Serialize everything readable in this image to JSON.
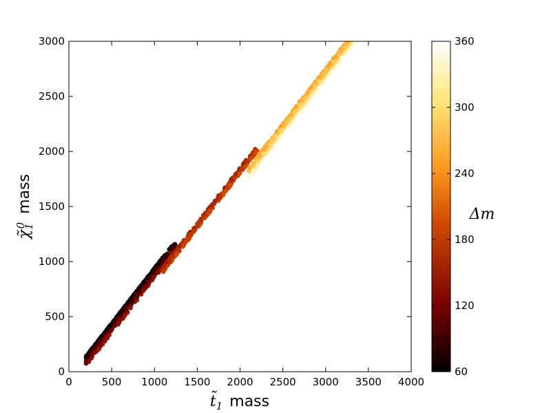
{
  "chart_data": {
    "type": "scatter",
    "xlabel_symbol": "t̃",
    "xlabel_sub": "1",
    "xlabel_word": "mass",
    "ylabel_symbol": "χ̃",
    "ylabel_sub": "1",
    "ylabel_sup": "0",
    "ylabel_word": "mass",
    "xlim": [
      0,
      4000
    ],
    "ylim": [
      0,
      3000
    ],
    "xticks": [
      0,
      500,
      1000,
      1500,
      2000,
      2500,
      3000,
      3500,
      4000
    ],
    "yticks": [
      0,
      500,
      1000,
      1500,
      2000,
      2500,
      3000
    ],
    "grid": false,
    "colorbar": {
      "label": "Δm",
      "range": [
        60,
        360
      ],
      "ticks": [
        60,
        120,
        180,
        240,
        300,
        360
      ],
      "colormap": "afmhot",
      "stops": [
        "#000000",
        "#7a0000",
        "#d04a00",
        "#ff9a1e",
        "#ffe57a",
        "#ffffff"
      ]
    },
    "bands": [
      {
        "x": [
          200,
          1100
        ],
        "dm": [
          60,
          75
        ]
      },
      {
        "x": [
          200,
          1250
        ],
        "dm": [
          60,
          150
        ]
      },
      {
        "x": [
          1100,
          2200
        ],
        "dm": [
          150,
          200
        ]
      },
      {
        "x": [
          2100,
          3400
        ],
        "dm": [
          250,
          350
        ]
      },
      {
        "x": [
          2200,
          3300
        ],
        "dm": [
          250,
          300
        ]
      }
    ]
  }
}
